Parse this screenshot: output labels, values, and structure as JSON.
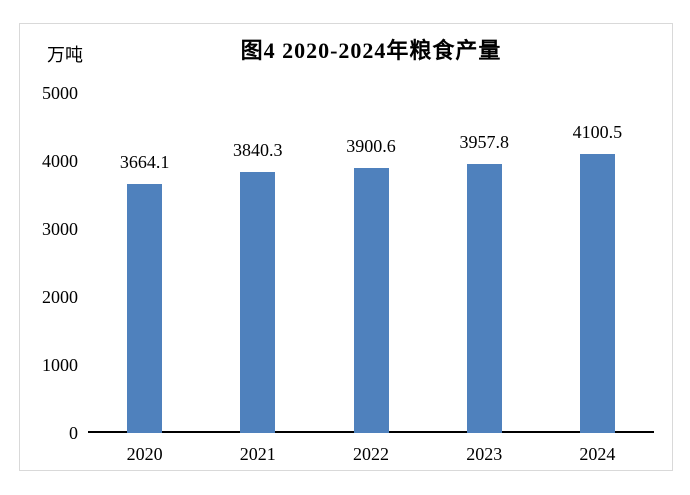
{
  "chart_data": {
    "type": "bar",
    "title": "图4 2020-2024年粮食产量",
    "unit_label": "万吨",
    "categories": [
      "2020",
      "2021",
      "2022",
      "2023",
      "2024"
    ],
    "values": [
      3664.1,
      3840.3,
      3900.6,
      3957.8,
      4100.5
    ],
    "data_labels": [
      "3664.1",
      "3840.3",
      "3900.6",
      "3957.8",
      "4100.5"
    ],
    "ylim": [
      0,
      5000
    ],
    "yticks": [
      0,
      1000,
      2000,
      3000,
      4000,
      5000
    ],
    "grid": false,
    "legend": "none",
    "bar_color": "#4F81BD",
    "axis_color": "#000000",
    "frame_color": "#D9D9D9"
  }
}
